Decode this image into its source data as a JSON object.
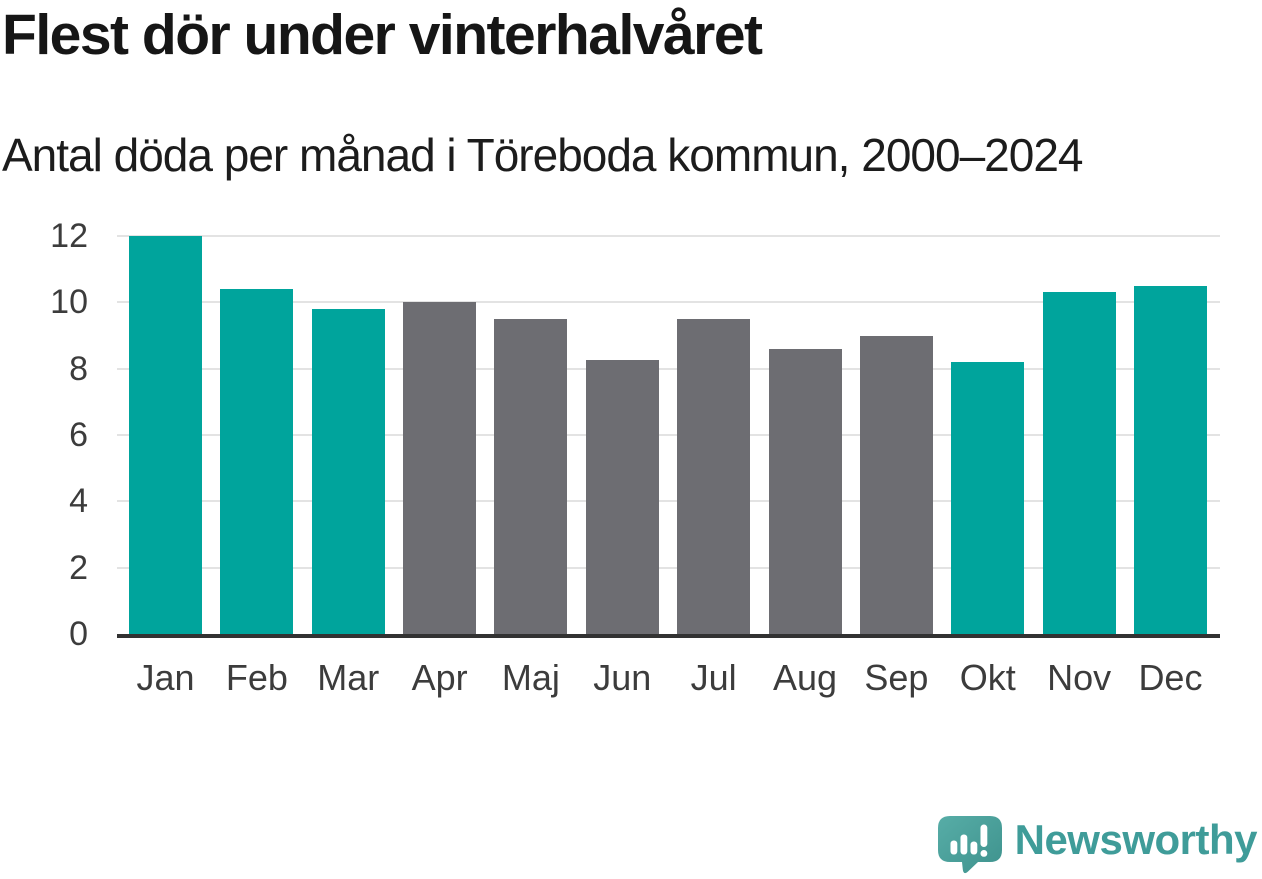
{
  "header": {
    "title": "Flest dör under vinterhalvåret",
    "subtitle": "Antal döda per månad i Töreboda kommun, 2000–2024"
  },
  "chart_data": {
    "type": "bar",
    "title": "Flest dör under vinterhalvåret",
    "subtitle": "Antal döda per månad i Töreboda kommun, 2000–2024",
    "categories": [
      "Jan",
      "Feb",
      "Mar",
      "Apr",
      "Maj",
      "Jun",
      "Jul",
      "Aug",
      "Sep",
      "Okt",
      "Nov",
      "Dec"
    ],
    "values": [
      12.0,
      10.4,
      9.8,
      10.0,
      9.5,
      8.25,
      9.5,
      8.6,
      9.0,
      8.2,
      10.3,
      10.5
    ],
    "bar_styles": [
      "highlight",
      "highlight",
      "highlight",
      "neutral",
      "neutral",
      "neutral",
      "neutral",
      "neutral",
      "neutral",
      "highlight",
      "highlight",
      "highlight"
    ],
    "xlabel": "",
    "ylabel": "",
    "ylim": [
      0,
      12
    ],
    "yticks": [
      0,
      2,
      4,
      6,
      8,
      10,
      12
    ],
    "grid": "horizontal-only",
    "legend": "none"
  },
  "colors": {
    "highlight": "#00a49c",
    "neutral": "#6d6d72",
    "axis_line": "#323232",
    "gridline": "#e3e3e3",
    "title_text": "#161616",
    "tick_text": "#3c3c3c",
    "brand_teal": "#3f9c99"
  },
  "footer": {
    "brand_name": "Newsworthy",
    "logo_icon": "newsworthy-speech-bubble-bar-chart-icon"
  }
}
